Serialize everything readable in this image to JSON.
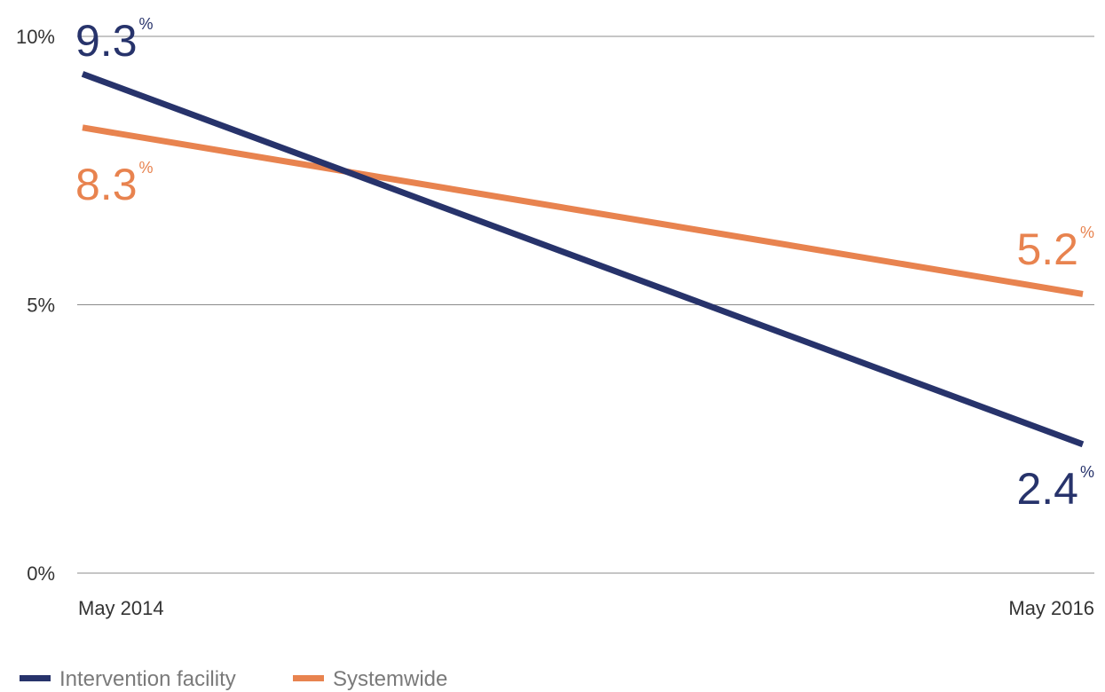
{
  "chart_data": {
    "type": "line",
    "x": [
      "May 2014",
      "May 2016"
    ],
    "y_ticks": [
      "0%",
      "5%",
      "10%"
    ],
    "y_tick_values": [
      0,
      5,
      10
    ],
    "ylim": [
      0,
      10
    ],
    "grid": true,
    "legend_placement": "bottom-left",
    "series": [
      {
        "name": "Intervention facility",
        "values": [
          9.3,
          2.4
        ],
        "value_labels": [
          "9.3",
          "2.4"
        ],
        "color": "#27336b"
      },
      {
        "name": "Systemwide",
        "values": [
          8.3,
          5.2
        ],
        "value_labels": [
          "8.3",
          "5.2"
        ],
        "color": "#e8834f"
      }
    ],
    "unit": "%"
  }
}
